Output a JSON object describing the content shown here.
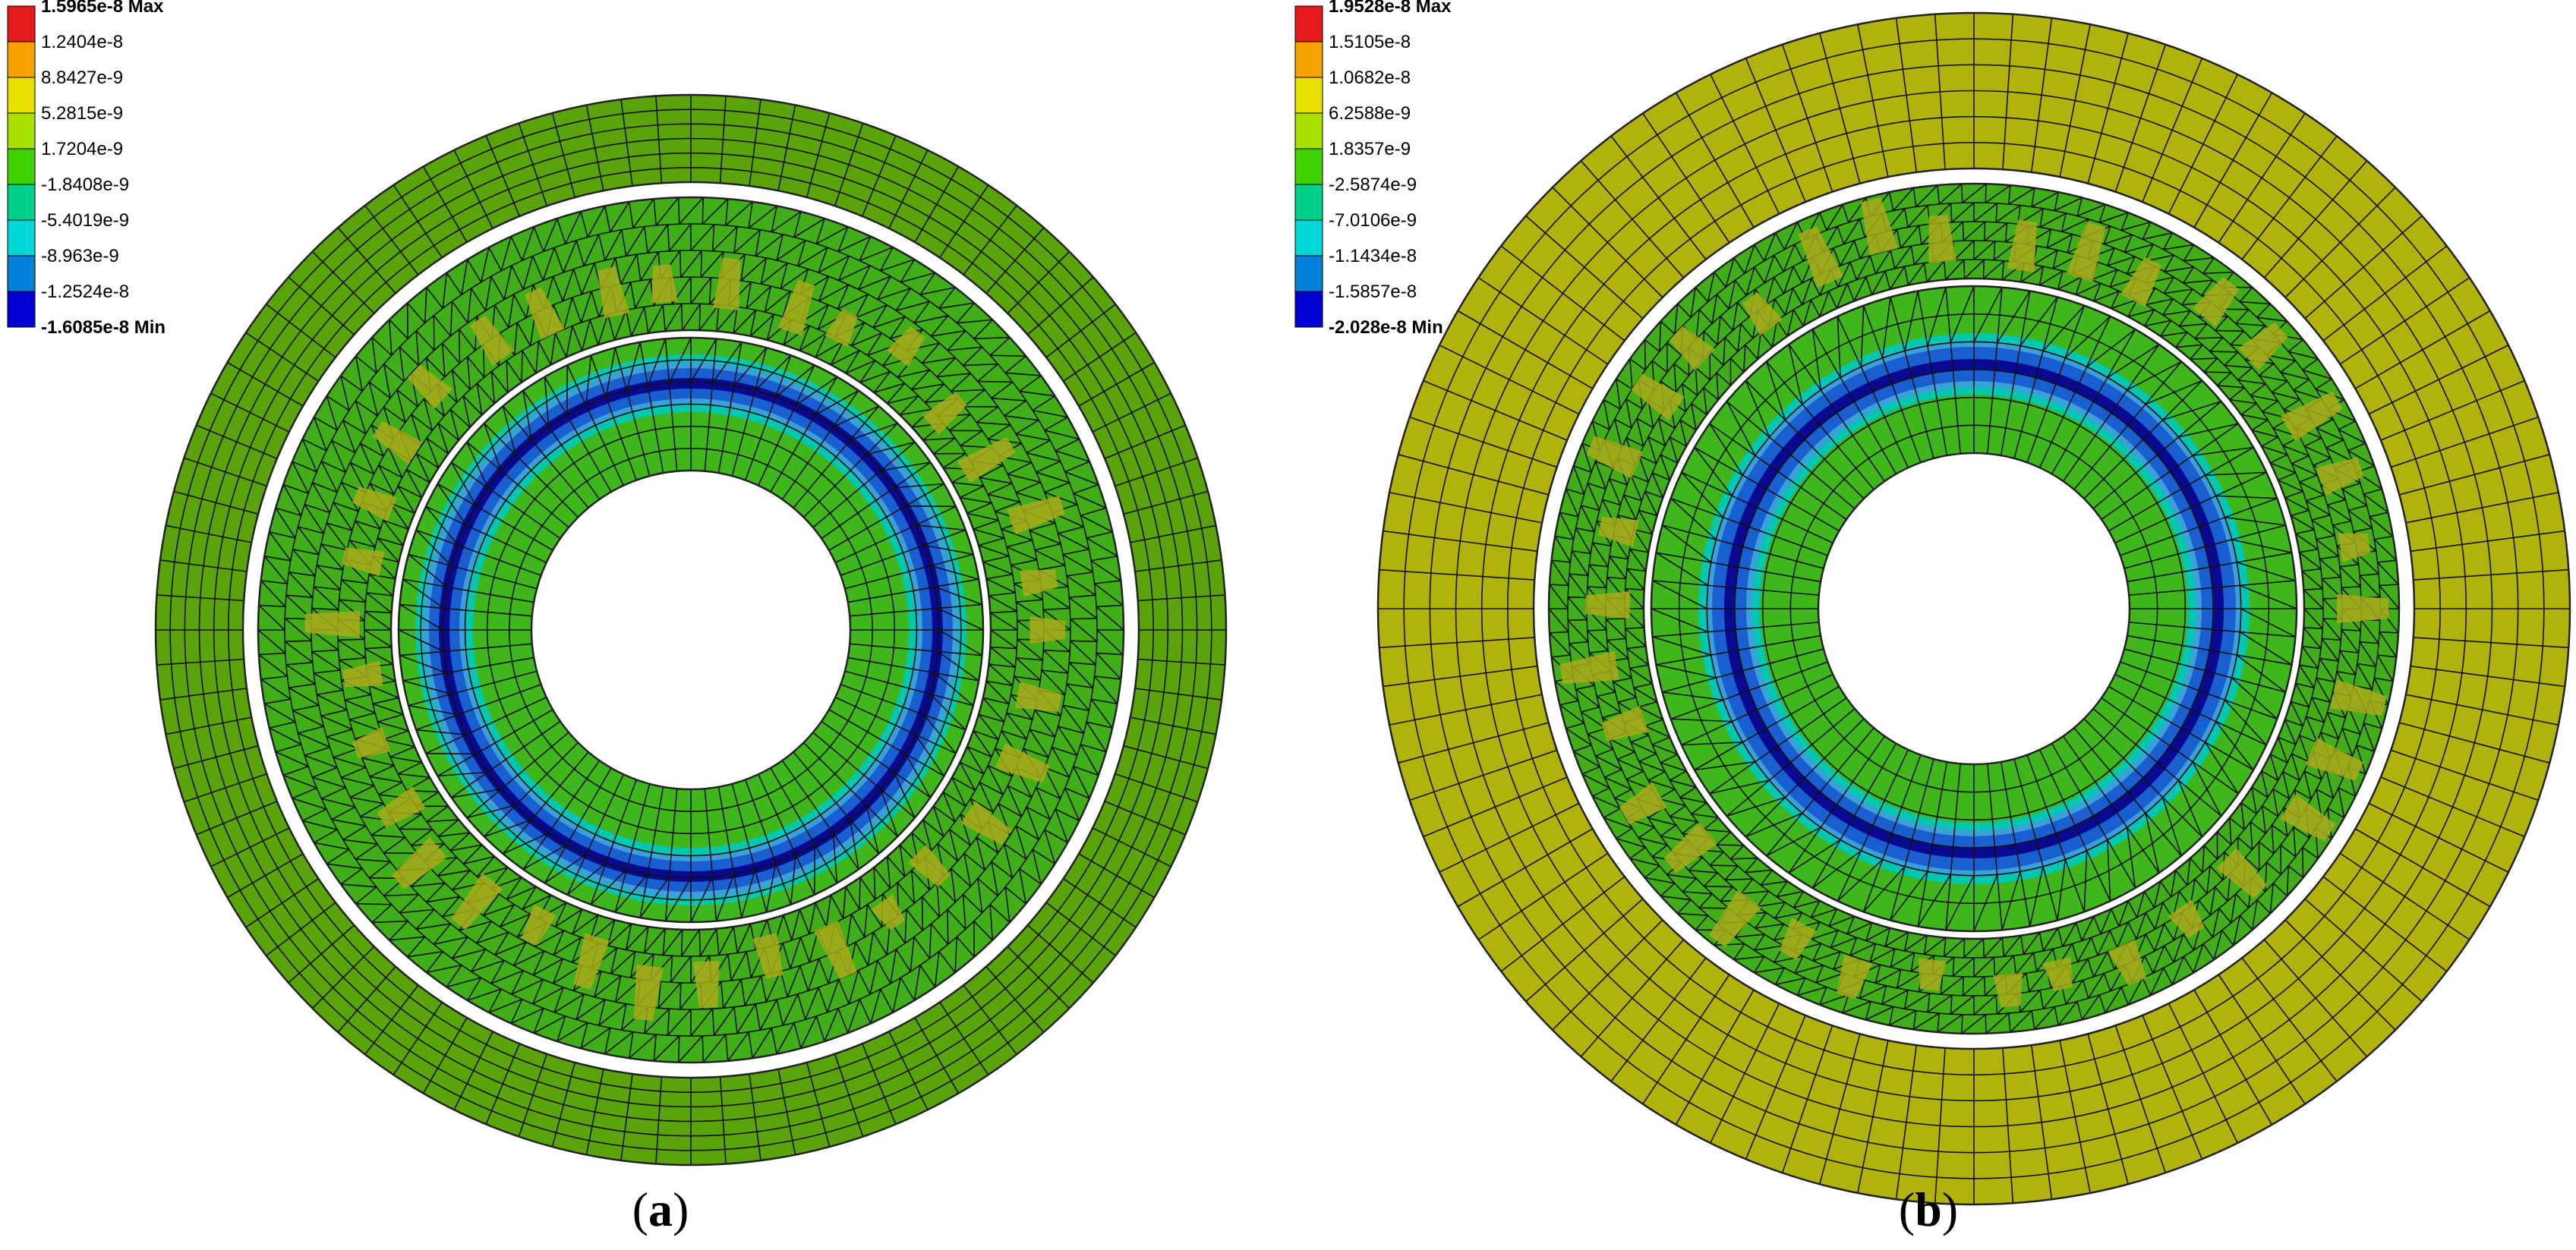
{
  "panels": [
    {
      "id": "a",
      "caption_letter": "a",
      "legend": {
        "labels": [
          "1.5965e-8 Max",
          "1.2404e-8",
          "8.8427e-9",
          "5.2815e-9",
          "1.7204e-9",
          "-1.8408e-9",
          "-5.4019e-9",
          "-8.963e-9",
          "-1.2524e-8",
          "-1.6085e-8 Min"
        ],
        "swatch_colors": [
          "#e41a1c",
          "#f5a100",
          "#e8e000",
          "#a8e000",
          "#40d000",
          "#00d08a",
          "#00d8d8",
          "#0080d8",
          "#0000d0"
        ]
      },
      "colors": {
        "outer_ring": "#5aa30a",
        "middle_ring": "#3fae18",
        "inner_ring": "#3fb61c",
        "hot_patch": "#a9a91c"
      }
    },
    {
      "id": "b",
      "caption_letter": "b",
      "legend": {
        "labels": [
          "1.9528e-8 Max",
          "1.5105e-8",
          "1.0682e-8",
          "6.2588e-9",
          "1.8357e-9",
          "-2.5874e-9",
          "-7.0106e-9",
          "-1.1434e-8",
          "-1.5857e-8",
          "-2.028e-8 Min"
        ],
        "swatch_colors": [
          "#e41a1c",
          "#f5a100",
          "#e8e000",
          "#a8e000",
          "#40d000",
          "#00d08a",
          "#00d8d8",
          "#0080d8",
          "#0000d0"
        ]
      },
      "colors": {
        "outer_ring": "#b2b20c",
        "middle_ring": "#3fae18",
        "inner_ring": "#3fb61c",
        "hot_patch": "#a9a91c"
      }
    }
  ],
  "caption_paren_open": "(",
  "caption_paren_close": ")"
}
